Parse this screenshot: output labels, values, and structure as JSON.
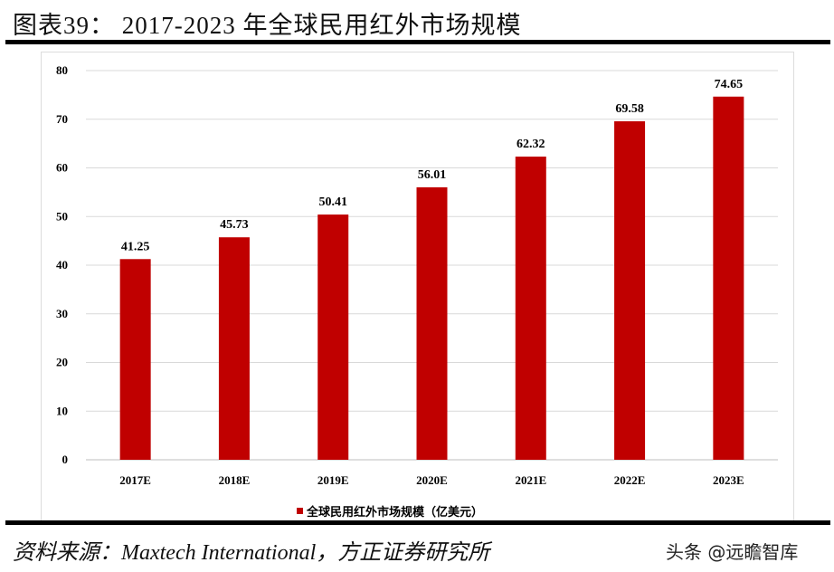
{
  "title": "图表39：  2017-2023 年全球民用红外市场规模",
  "chart_data": {
    "type": "bar",
    "categories": [
      "2017E",
      "2018E",
      "2019E",
      "2020E",
      "2021E",
      "2022E",
      "2023E"
    ],
    "series": [
      {
        "name": "全球民用红外市场规模（亿美元）",
        "values": [
          41.25,
          45.73,
          50.41,
          56.01,
          62.32,
          69.58,
          74.65
        ]
      }
    ],
    "data_labels": [
      "41.25",
      "45.73",
      "50.41",
      "56.01",
      "62.32",
      "69.58",
      "74.65"
    ],
    "ylim": [
      0,
      80
    ],
    "yticks": [
      0,
      10,
      20,
      30,
      40,
      50,
      60,
      70,
      80
    ],
    "grid": true,
    "legend": "bottom",
    "color": "#c00000"
  },
  "source": "资料来源：Maxtech International，方正证券研究所",
  "watermark": "头条 @远瞻智库"
}
